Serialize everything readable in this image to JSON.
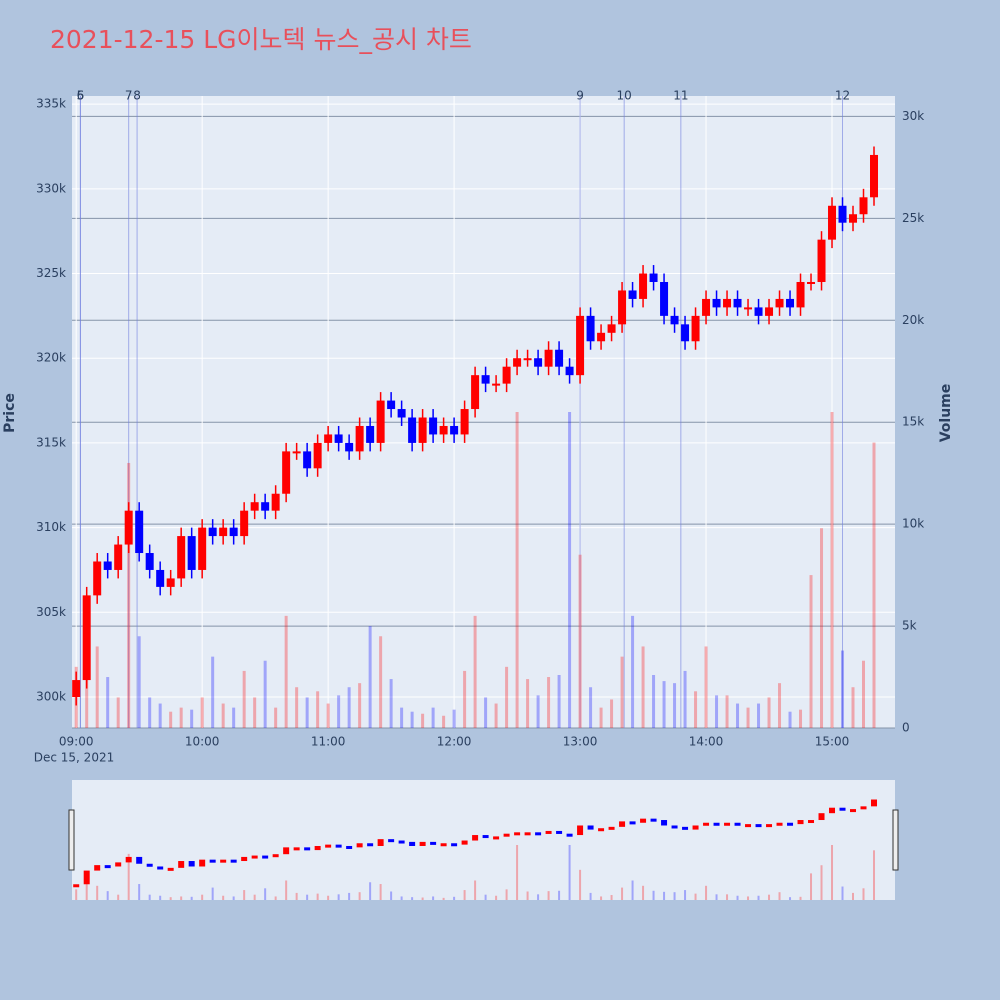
{
  "chart_data": {
    "type": "candlestick",
    "title": "2021-12-15 LG이노텍 뉴스_공시 차트",
    "y_title": "Price",
    "y2_title": "Volume",
    "x_date_label": "Dec 15, 2021",
    "up_color": "#ff0000",
    "down_color": "#0000ff",
    "grid": true,
    "xlim": [
      "08:58",
      "15:30"
    ],
    "xticks": [
      "09:00",
      "10:00",
      "11:00",
      "12:00",
      "13:00",
      "14:00",
      "15:00"
    ],
    "ylim": [
      298170,
      335480
    ],
    "yticks": [
      {
        "value": 300000,
        "label": "300k"
      },
      {
        "value": 305000,
        "label": "305k"
      },
      {
        "value": 310000,
        "label": "310k"
      },
      {
        "value": 315000,
        "label": "315k"
      },
      {
        "value": 320000,
        "label": "320k"
      },
      {
        "value": 325000,
        "label": "325k"
      },
      {
        "value": 330000,
        "label": "330k"
      },
      {
        "value": 335000,
        "label": "335k"
      }
    ],
    "y2lim": [
      0,
      31000
    ],
    "y2ticks": [
      0,
      {
        "value": 5000,
        "label": "5k"
      },
      {
        "value": 10000,
        "label": "10k"
      },
      {
        "value": 15000,
        "label": "15k"
      },
      {
        "value": 20000,
        "label": "20k"
      },
      {
        "value": 25000,
        "label": "25k"
      },
      {
        "value": 30000,
        "label": "30k"
      }
    ],
    "news": [
      {
        "label": "5",
        "x": "09:02"
      },
      {
        "label": "6",
        "x": "09:02"
      },
      {
        "label": "7",
        "x": "09:25"
      },
      {
        "label": "8",
        "x": "09:29"
      },
      {
        "label": "9",
        "x": "13:00"
      },
      {
        "label": "10",
        "x": "13:21"
      },
      {
        "label": "11",
        "x": "13:48"
      },
      {
        "label": "12",
        "x": "15:05"
      }
    ],
    "x": [
      "09:00",
      "09:05",
      "09:10",
      "09:15",
      "09:20",
      "09:25",
      "09:30",
      "09:35",
      "09:40",
      "09:45",
      "09:50",
      "09:55",
      "10:00",
      "10:05",
      "10:10",
      "10:15",
      "10:20",
      "10:25",
      "10:30",
      "10:35",
      "10:40",
      "10:45",
      "10:50",
      "10:55",
      "11:00",
      "11:05",
      "11:10",
      "11:15",
      "11:20",
      "11:25",
      "11:30",
      "11:35",
      "11:40",
      "11:45",
      "11:50",
      "11:55",
      "12:00",
      "12:05",
      "12:10",
      "12:15",
      "12:20",
      "12:25",
      "12:30",
      "12:35",
      "12:40",
      "12:45",
      "12:50",
      "12:55",
      "13:00",
      "13:05",
      "13:10",
      "13:15",
      "13:20",
      "13:25",
      "13:30",
      "13:35",
      "13:40",
      "13:45",
      "13:50",
      "13:55",
      "14:00",
      "14:05",
      "14:10",
      "14:15",
      "14:20",
      "14:25",
      "14:30",
      "14:35",
      "14:40",
      "14:45",
      "14:50",
      "14:55",
      "15:00",
      "15:05",
      "15:10",
      "15:15",
      "15:20"
    ],
    "open": [
      300000,
      301000,
      306000,
      308000,
      307500,
      309000,
      311000,
      308500,
      307500,
      306500,
      307000,
      309500,
      307500,
      310000,
      309500,
      310000,
      309500,
      311000,
      311500,
      311000,
      312000,
      314500,
      314500,
      313500,
      315000,
      315500,
      315000,
      314500,
      316000,
      315000,
      317500,
      317000,
      316500,
      315000,
      316500,
      315500,
      316000,
      315500,
      317000,
      319000,
      318500,
      318500,
      319500,
      320000,
      320000,
      319500,
      320500,
      319500,
      319000,
      322500,
      321000,
      321500,
      322000,
      324000,
      323500,
      325000,
      324500,
      322500,
      322000,
      321000,
      322500,
      323500,
      323000,
      323500,
      323000,
      323000,
      322500,
      323000,
      323500,
      323000,
      324500,
      324500,
      327000,
      329000,
      328000,
      328500,
      329500
    ],
    "high": [
      301500,
      306500,
      308500,
      308500,
      309500,
      311500,
      311500,
      309000,
      308000,
      307500,
      310000,
      310000,
      310500,
      310500,
      310500,
      310500,
      311500,
      312000,
      312000,
      312500,
      315000,
      315000,
      315000,
      315500,
      316000,
      316000,
      315500,
      316500,
      316500,
      318000,
      318000,
      317500,
      317000,
      317000,
      317000,
      316500,
      316500,
      317500,
      319500,
      319500,
      319000,
      320000,
      320500,
      320500,
      320500,
      321000,
      321000,
      320000,
      323000,
      323000,
      322000,
      322500,
      324500,
      324500,
      325500,
      325500,
      325000,
      323000,
      322500,
      323000,
      324000,
      324000,
      324000,
      324000,
      323500,
      323500,
      323500,
      324000,
      324000,
      325000,
      325000,
      327500,
      329500,
      329500,
      329000,
      330000,
      332500
    ],
    "low": [
      299500,
      300500,
      305500,
      307000,
      307000,
      308500,
      308000,
      307000,
      306000,
      306000,
      306500,
      307000,
      307000,
      309000,
      309000,
      309000,
      309000,
      310500,
      310500,
      310500,
      311500,
      314000,
      313000,
      313000,
      314500,
      314500,
      314000,
      314000,
      314500,
      314500,
      316500,
      316000,
      314500,
      314500,
      315000,
      315000,
      315000,
      315000,
      316500,
      318000,
      318000,
      318000,
      319000,
      319500,
      319000,
      319000,
      319000,
      318500,
      318500,
      320500,
      320500,
      321000,
      321500,
      323000,
      323000,
      324000,
      322000,
      321500,
      320500,
      320500,
      322000,
      322500,
      322500,
      322500,
      322500,
      322000,
      322000,
      322500,
      322500,
      322500,
      324000,
      324000,
      326500,
      327500,
      327500,
      328000,
      329000
    ],
    "close": [
      301000,
      306000,
      308000,
      307500,
      309000,
      311000,
      308500,
      307500,
      306500,
      307000,
      309500,
      307500,
      310000,
      309500,
      310000,
      309500,
      311000,
      311500,
      311000,
      312000,
      314500,
      314500,
      313500,
      315000,
      315500,
      315000,
      314500,
      316000,
      315000,
      317500,
      317000,
      316500,
      315000,
      316500,
      315500,
      316000,
      315500,
      317000,
      319000,
      318500,
      318500,
      319500,
      320000,
      320000,
      319500,
      320500,
      319500,
      319000,
      322500,
      321000,
      321500,
      322000,
      324000,
      323500,
      325000,
      324500,
      322500,
      322000,
      321000,
      322500,
      323500,
      323000,
      323500,
      323000,
      323000,
      322500,
      323000,
      323500,
      323000,
      324500,
      324500,
      327000,
      329000,
      328000,
      328500,
      329500,
      332000
    ],
    "volume": [
      3000,
      5500,
      4000,
      2500,
      1500,
      13000,
      4500,
      1500,
      1200,
      800,
      1000,
      900,
      1500,
      3500,
      1200,
      1000,
      2800,
      1500,
      3300,
      1000,
      5500,
      2000,
      1500,
      1800,
      1200,
      1600,
      2000,
      2200,
      5000,
      4500,
      2400,
      1000,
      800,
      700,
      1000,
      600,
      900,
      2800,
      5500,
      1500,
      1200,
      3000,
      15500,
      2400,
      1600,
      2500,
      2600,
      15500,
      8500,
      2000,
      1000,
      1400,
      3500,
      5500,
      4000,
      2600,
      2300,
      2200,
      2800,
      1800,
      4000,
      1600,
      1600,
      1200,
      1000,
      1200,
      1500,
      2200,
      800,
      900,
      7500,
      9800,
      15500,
      3800,
      2000,
      3300,
      14000
    ]
  }
}
